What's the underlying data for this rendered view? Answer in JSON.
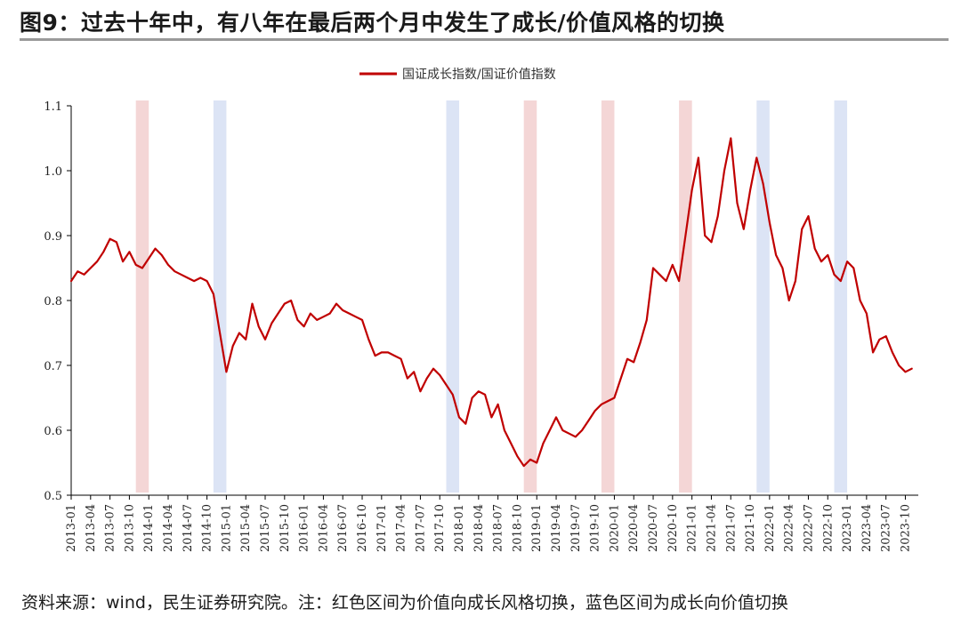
{
  "header": {
    "title": "图9：过去十年中，有八年在最后两个月中发生了成长/价值风格的切换"
  },
  "footer": {
    "source": "资料来源：wind，民生证券研究院。注：红色区间为价值向成长风格切换，蓝色区间为成长向价值切换"
  },
  "colors": {
    "line": "#c00000",
    "red_band": "#f4d6d6",
    "blue_band": "#dce4f5"
  },
  "chart_data": {
    "type": "line",
    "series": [
      {
        "name": "国证成长指数/国证价值指数",
        "points": [
          [
            "2013-01",
            0.83
          ],
          [
            "2013-02",
            0.845
          ],
          [
            "2013-03",
            0.84
          ],
          [
            "2013-04",
            0.85
          ],
          [
            "2013-05",
            0.86
          ],
          [
            "2013-06",
            0.875
          ],
          [
            "2013-07",
            0.895
          ],
          [
            "2013-08",
            0.89
          ],
          [
            "2013-09",
            0.86
          ],
          [
            "2013-10",
            0.875
          ],
          [
            "2013-11",
            0.855
          ],
          [
            "2013-12",
            0.85
          ],
          [
            "2014-01",
            0.865
          ],
          [
            "2014-02",
            0.88
          ],
          [
            "2014-03",
            0.87
          ],
          [
            "2014-04",
            0.855
          ],
          [
            "2014-05",
            0.845
          ],
          [
            "2014-06",
            0.84
          ],
          [
            "2014-07",
            0.835
          ],
          [
            "2014-08",
            0.83
          ],
          [
            "2014-09",
            0.835
          ],
          [
            "2014-10",
            0.83
          ],
          [
            "2014-11",
            0.81
          ],
          [
            "2014-12",
            0.75
          ],
          [
            "2015-01",
            0.69
          ],
          [
            "2015-02",
            0.73
          ],
          [
            "2015-03",
            0.75
          ],
          [
            "2015-04",
            0.74
          ],
          [
            "2015-05",
            0.795
          ],
          [
            "2015-06",
            0.76
          ],
          [
            "2015-07",
            0.74
          ],
          [
            "2015-08",
            0.765
          ],
          [
            "2015-09",
            0.78
          ],
          [
            "2015-10",
            0.795
          ],
          [
            "2015-11",
            0.8
          ],
          [
            "2015-12",
            0.77
          ],
          [
            "2016-01",
            0.76
          ],
          [
            "2016-02",
            0.78
          ],
          [
            "2016-03",
            0.77
          ],
          [
            "2016-04",
            0.775
          ],
          [
            "2016-05",
            0.78
          ],
          [
            "2016-06",
            0.795
          ],
          [
            "2016-07",
            0.785
          ],
          [
            "2016-08",
            0.78
          ],
          [
            "2016-09",
            0.775
          ],
          [
            "2016-10",
            0.77
          ],
          [
            "2016-11",
            0.74
          ],
          [
            "2016-12",
            0.715
          ],
          [
            "2017-01",
            0.72
          ],
          [
            "2017-02",
            0.72
          ],
          [
            "2017-03",
            0.715
          ],
          [
            "2017-04",
            0.71
          ],
          [
            "2017-05",
            0.68
          ],
          [
            "2017-06",
            0.69
          ],
          [
            "2017-07",
            0.66
          ],
          [
            "2017-08",
            0.68
          ],
          [
            "2017-09",
            0.695
          ],
          [
            "2017-10",
            0.685
          ],
          [
            "2017-11",
            0.67
          ],
          [
            "2017-12",
            0.655
          ],
          [
            "2018-01",
            0.62
          ],
          [
            "2018-02",
            0.61
          ],
          [
            "2018-03",
            0.65
          ],
          [
            "2018-04",
            0.66
          ],
          [
            "2018-05",
            0.655
          ],
          [
            "2018-06",
            0.62
          ],
          [
            "2018-07",
            0.64
          ],
          [
            "2018-08",
            0.6
          ],
          [
            "2018-09",
            0.58
          ],
          [
            "2018-10",
            0.56
          ],
          [
            "2018-11",
            0.545
          ],
          [
            "2018-12",
            0.555
          ],
          [
            "2019-01",
            0.55
          ],
          [
            "2019-02",
            0.58
          ],
          [
            "2019-03",
            0.6
          ],
          [
            "2019-04",
            0.62
          ],
          [
            "2019-05",
            0.6
          ],
          [
            "2019-06",
            0.595
          ],
          [
            "2019-07",
            0.59
          ],
          [
            "2019-08",
            0.6
          ],
          [
            "2019-09",
            0.615
          ],
          [
            "2019-10",
            0.63
          ],
          [
            "2019-11",
            0.64
          ],
          [
            "2019-12",
            0.645
          ],
          [
            "2020-01",
            0.65
          ],
          [
            "2020-02",
            0.68
          ],
          [
            "2020-03",
            0.71
          ],
          [
            "2020-04",
            0.705
          ],
          [
            "2020-05",
            0.735
          ],
          [
            "2020-06",
            0.77
          ],
          [
            "2020-07",
            0.85
          ],
          [
            "2020-08",
            0.84
          ],
          [
            "2020-09",
            0.83
          ],
          [
            "2020-10",
            0.855
          ],
          [
            "2020-11",
            0.83
          ],
          [
            "2020-12",
            0.9
          ],
          [
            "2021-01",
            0.97
          ],
          [
            "2021-02",
            1.02
          ],
          [
            "2021-03",
            0.9
          ],
          [
            "2021-04",
            0.89
          ],
          [
            "2021-05",
            0.93
          ],
          [
            "2021-06",
            1.0
          ],
          [
            "2021-07",
            1.05
          ],
          [
            "2021-08",
            0.95
          ],
          [
            "2021-09",
            0.91
          ],
          [
            "2021-10",
            0.97
          ],
          [
            "2021-11",
            1.02
          ],
          [
            "2021-12",
            0.98
          ],
          [
            "2022-01",
            0.92
          ],
          [
            "2022-02",
            0.87
          ],
          [
            "2022-03",
            0.85
          ],
          [
            "2022-04",
            0.8
          ],
          [
            "2022-05",
            0.83
          ],
          [
            "2022-06",
            0.91
          ],
          [
            "2022-07",
            0.93
          ],
          [
            "2022-08",
            0.88
          ],
          [
            "2022-09",
            0.86
          ],
          [
            "2022-10",
            0.87
          ],
          [
            "2022-11",
            0.84
          ],
          [
            "2022-12",
            0.83
          ],
          [
            "2023-01",
            0.86
          ],
          [
            "2023-02",
            0.85
          ],
          [
            "2023-03",
            0.8
          ],
          [
            "2023-04",
            0.78
          ],
          [
            "2023-05",
            0.72
          ],
          [
            "2023-06",
            0.74
          ],
          [
            "2023-07",
            0.745
          ],
          [
            "2023-08",
            0.72
          ],
          [
            "2023-09",
            0.7
          ],
          [
            "2023-10",
            0.69
          ],
          [
            "2023-11",
            0.695
          ]
        ]
      }
    ],
    "x_ticks": [
      "2013-01",
      "2013-04",
      "2013-07",
      "2013-10",
      "2014-01",
      "2014-04",
      "2014-07",
      "2014-10",
      "2015-01",
      "2015-04",
      "2015-07",
      "2015-10",
      "2016-01",
      "2016-04",
      "2016-07",
      "2016-10",
      "2017-01",
      "2017-04",
      "2017-07",
      "2017-10",
      "2018-01",
      "2018-04",
      "2018-07",
      "2018-10",
      "2019-01",
      "2019-04",
      "2019-07",
      "2019-10",
      "2020-01",
      "2020-04",
      "2020-07",
      "2020-10",
      "2021-01",
      "2021-04",
      "2021-07",
      "2021-10",
      "2022-01",
      "2022-04",
      "2022-07",
      "2022-10",
      "2023-01",
      "2023-04",
      "2023-07",
      "2023-10"
    ],
    "y_ticks": [
      "0.5",
      "0.6",
      "0.7",
      "0.8",
      "0.9",
      "1.0",
      "1.1"
    ],
    "ylim": [
      0.5,
      1.1
    ],
    "x_range": [
      "2013-01",
      "2023-12"
    ],
    "bands": [
      {
        "kind": "red",
        "start": "2013-11",
        "end": "2014-01"
      },
      {
        "kind": "blue",
        "start": "2014-11",
        "end": "2015-01"
      },
      {
        "kind": "blue",
        "start": "2017-11",
        "end": "2018-01"
      },
      {
        "kind": "red",
        "start": "2018-11",
        "end": "2019-01"
      },
      {
        "kind": "red",
        "start": "2019-11",
        "end": "2020-01"
      },
      {
        "kind": "red",
        "start": "2020-11",
        "end": "2021-01"
      },
      {
        "kind": "blue",
        "start": "2021-11",
        "end": "2022-01"
      },
      {
        "kind": "blue",
        "start": "2022-11",
        "end": "2023-01"
      }
    ],
    "legend_position": "top-center",
    "grid": false
  }
}
